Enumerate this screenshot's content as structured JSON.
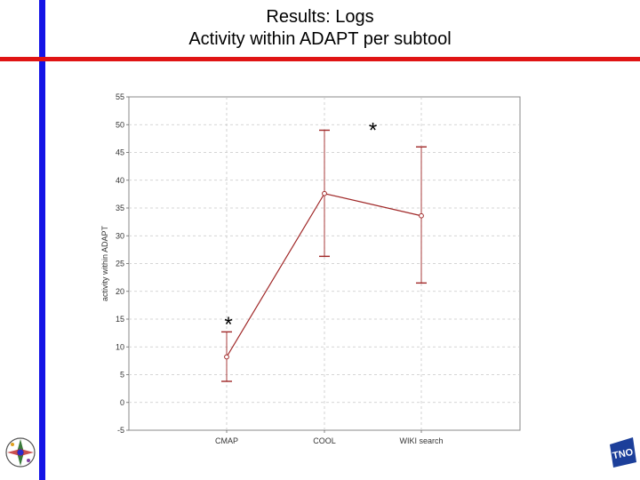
{
  "slide": {
    "title_line1": "Results: Logs",
    "title_line2": "Activity within ADAPT per subtool",
    "colors": {
      "left_bar": "#1414e6",
      "top_rule": "#e01414"
    }
  },
  "chart_data": {
    "type": "line",
    "categories": [
      "CMAP",
      "COOL",
      "WIKI search"
    ],
    "series": [
      {
        "values": [
          8.2,
          37.6,
          33.6
        ],
        "error_low": [
          3.8,
          26.3,
          21.5
        ],
        "error_high": [
          12.7,
          49.0,
          46.0
        ],
        "color": "#a02828"
      }
    ],
    "title": "",
    "xlabel": "",
    "ylabel": "activity within ADAPT",
    "ylim": [
      -5,
      55
    ],
    "yticks": [
      "55",
      "50",
      "45",
      "40",
      "35",
      "30",
      "25",
      "20",
      "15",
      "10",
      "5",
      "0",
      "-5"
    ],
    "grid": true,
    "annotations": [
      {
        "text": "*",
        "category": "CMAP",
        "y": 15
      },
      {
        "text": "*",
        "category": "COOL-WIKI",
        "y": 50
      }
    ]
  },
  "logos": {
    "left": "compass-logo-icon",
    "right": "tno-logo-icon",
    "right_text": "TNO"
  }
}
